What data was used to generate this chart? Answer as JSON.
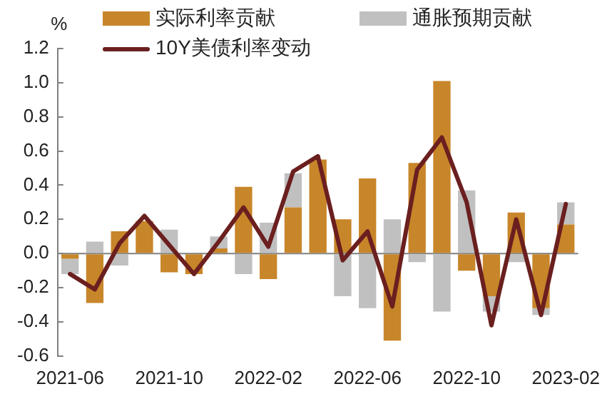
{
  "chart_data": {
    "type": "bar",
    "stacked": true,
    "ylabel": "%",
    "categories": [
      "2021-06",
      null,
      null,
      null,
      "2021-10",
      null,
      null,
      null,
      "2022-02",
      null,
      null,
      null,
      "2022-06",
      null,
      null,
      null,
      "2022-10",
      null,
      null,
      null,
      "2023-02"
    ],
    "series": [
      {
        "name": "实际利率贡献",
        "color": "#c8862a",
        "values": [
          -0.03,
          -0.29,
          0.13,
          0.19,
          -0.11,
          -0.12,
          0.03,
          0.39,
          -0.15,
          0.27,
          0.55,
          0.2,
          0.44,
          -0.51,
          0.53,
          1.01,
          -0.1,
          -0.25,
          0.24,
          -0.32,
          0.17
        ]
      },
      {
        "name": "通胀预期贡献",
        "color": "#c0c0c0",
        "values": [
          -0.09,
          0.07,
          -0.07,
          null,
          0.14,
          null,
          0.07,
          -0.12,
          0.18,
          0.2,
          null,
          -0.25,
          -0.32,
          0.2,
          -0.05,
          -0.34,
          0.37,
          -0.09,
          -0.05,
          -0.04,
          0.13
        ]
      },
      {
        "name": "10Y美债利率变动",
        "type": "line",
        "color": "#6b1f1f",
        "values": [
          -0.12,
          -0.21,
          0.06,
          0.22,
          0.05,
          -0.12,
          0.07,
          0.27,
          0.04,
          0.48,
          0.57,
          -0.04,
          0.13,
          -0.31,
          0.49,
          0.68,
          0.3,
          -0.42,
          0.2,
          -0.36,
          0.29
        ]
      }
    ],
    "ylim": [
      -0.6,
      1.2
    ],
    "yticks": [
      -0.6,
      -0.4,
      -0.2,
      {
        "value": 0,
        "label": "0.0"
      },
      0.2,
      0.4,
      0.6,
      0.8,
      {
        "value": 1,
        "label": "1.0"
      },
      1.2
    ],
    "ref_lines": [
      {
        "axis": "y",
        "value": 0,
        "color": "#808080"
      }
    ],
    "grid": false,
    "legend": "top",
    "marker": "none"
  }
}
